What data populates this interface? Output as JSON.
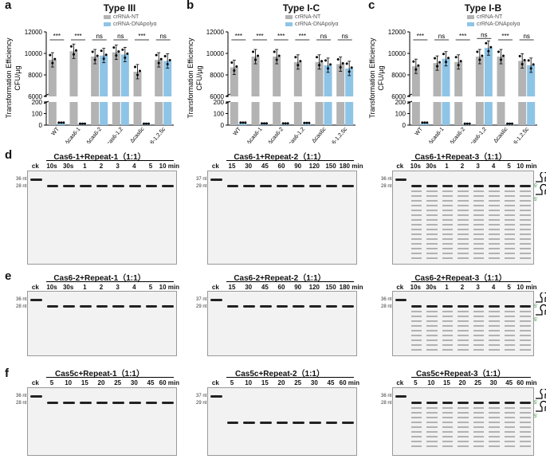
{
  "panels_top": [
    {
      "label": "a",
      "title": "Type III",
      "legend": [
        "crRNA-NT",
        "crRNA-DNApolyα"
      ],
      "ylabel_line1": "Transformation Efficiency",
      "ylabel_line2": "CFU/µg",
      "yticks_upper": [
        "6000",
        "8000",
        "10000",
        "12000"
      ],
      "yticks_lower": [
        "0",
        "100",
        "200"
      ],
      "categories": [
        "WT",
        "Δcas6-1",
        "Δcas6-2",
        "Δcas6-1,2",
        "Δcas6c",
        "Δcas6-1,2,5c"
      ],
      "nt": [
        9400,
        10200,
        9700,
        10100,
        8300,
        9400
      ],
      "dna": [
        15,
        5,
        9800,
        9900,
        5,
        9300
      ],
      "sig": [
        "***",
        "***",
        "ns",
        "ns",
        "***",
        "ns"
      ]
    },
    {
      "label": "b",
      "title": "Type I-C",
      "legend": [
        "crRNA-NT",
        "crRNA-DNApolyα"
      ],
      "ylabel_line1": "Transformation Efficiency",
      "ylabel_line2": "CFU/µg",
      "yticks_upper": [
        "6000",
        "8000",
        "10000",
        "12000"
      ],
      "yticks_lower": [
        "0",
        "100",
        "200"
      ],
      "categories": [
        "WT",
        "Δcas6-1",
        "Δcas6-2",
        "Δcas6-1,2",
        "Δcas6c",
        "Δcas6-1,2,5c"
      ],
      "nt": [
        8700,
        9700,
        9700,
        9200,
        9200,
        9000
      ],
      "dna": [
        15,
        8,
        8,
        12,
        8900,
        8600
      ],
      "sig": [
        "***",
        "***",
        "***",
        "***",
        "ns",
        "ns"
      ]
    },
    {
      "label": "c",
      "title": "Type I-B",
      "legend": [
        "crRNA-NT",
        "crRNA-DNApolyα"
      ],
      "ylabel_line1": "Transformation Efficiency",
      "ylabel_line2": "CFU/µg",
      "yticks_upper": [
        "6000",
        "8000",
        "10000",
        "12000"
      ],
      "yticks_lower": [
        "0",
        "100",
        "200"
      ],
      "categories": [
        "WT",
        "Δcas6-1",
        "Δcas6-2",
        "Δcas6-1,2",
        "Δcas6c",
        "Δcas6-1,2,5c"
      ],
      "nt": [
        8800,
        9100,
        9200,
        9700,
        9700,
        9300
      ],
      "dna": [
        15,
        9500,
        5,
        10500,
        5,
        8900
      ],
      "sig": [
        "***",
        "ns",
        "***",
        "ns",
        "***",
        "ns"
      ]
    }
  ],
  "chart_data": [
    {
      "type": "bar",
      "title": "Type III",
      "categories": [
        "WT",
        "Δcas6-1",
        "Δcas6-2",
        "Δcas6-1,2",
        "Δcas6c",
        "Δcas6-1,2,5c"
      ],
      "series": [
        {
          "name": "crRNA-NT",
          "values": [
            9400,
            10200,
            9700,
            10100,
            8300,
            9400
          ]
        },
        {
          "name": "crRNA-DNApolyα",
          "values": [
            15,
            5,
            9800,
            9900,
            5,
            9300
          ]
        }
      ],
      "ylabel": "Transformation Efficiency CFU/µg",
      "ylim": [
        0,
        12000
      ]
    },
    {
      "type": "bar",
      "title": "Type I-C",
      "categories": [
        "WT",
        "Δcas6-1",
        "Δcas6-2",
        "Δcas6-1,2",
        "Δcas6c",
        "Δcas6-1,2,5c"
      ],
      "series": [
        {
          "name": "crRNA-NT",
          "values": [
            8700,
            9700,
            9700,
            9200,
            9200,
            9000
          ]
        },
        {
          "name": "crRNA-DNApolyα",
          "values": [
            15,
            8,
            8,
            12,
            8900,
            8600
          ]
        }
      ],
      "ylabel": "Transformation Efficiency CFU/µg",
      "ylim": [
        0,
        12000
      ]
    },
    {
      "type": "bar",
      "title": "Type I-B",
      "categories": [
        "WT",
        "Δcas6-1",
        "Δcas6-2",
        "Δcas6-1,2",
        "Δcas6c",
        "Δcas6-1,2,5c"
      ],
      "series": [
        {
          "name": "crRNA-NT",
          "values": [
            8800,
            9100,
            9200,
            9700,
            9700,
            9300
          ]
        },
        {
          "name": "crRNA-DNApolyα",
          "values": [
            15,
            9500,
            5,
            10500,
            5,
            8900
          ]
        }
      ],
      "ylabel": "Transformation Efficiency CFU/µg",
      "ylim": [
        0,
        12000
      ]
    }
  ],
  "row_labels": [
    "d",
    "e",
    "f"
  ],
  "gels": [
    {
      "title": "Cas6-1+Repeat-1（1:1）",
      "lanes": [
        "ck",
        "10s",
        "30s",
        "1",
        "2",
        "3",
        "4",
        "5",
        "10 min"
      ],
      "nt": [
        "36 nt",
        "28 nt"
      ]
    },
    {
      "title": "Cas6-1+Repeat-2（1:1）",
      "lanes": [
        "ck",
        "15",
        "30",
        "45",
        "60",
        "90",
        "120",
        "150",
        "180 min"
      ],
      "nt": [
        "37 nt",
        "29 nt"
      ]
    },
    {
      "title": "Cas6-1+Repeat-3（1:1）",
      "lanes": [
        "ck",
        "10s",
        "30s",
        "1",
        "2",
        "3",
        "4",
        "5",
        "10 min"
      ],
      "nt": [
        "36 nt",
        "28 nt"
      ]
    },
    {
      "title": "Cas6-2+Repeat-1（1:1）",
      "lanes": [
        "ck",
        "10s",
        "30s",
        "1",
        "2",
        "3",
        "4",
        "5",
        "10 min"
      ],
      "nt": [
        "36 nt",
        "28 nt"
      ]
    },
    {
      "title": "Cas6-2+Repeat-2（1:1）",
      "lanes": [
        "ck",
        "15",
        "30",
        "45",
        "60",
        "90",
        "120",
        "150",
        "180 min"
      ],
      "nt": [
        "37 nt",
        "29 nt"
      ]
    },
    {
      "title": "Cas6-2+Repeat-3（1:1）",
      "lanes": [
        "ck",
        "10s",
        "30s",
        "1",
        "2",
        "3",
        "4",
        "5",
        "10 min"
      ],
      "nt": [
        "36 nt",
        "28 nt"
      ]
    },
    {
      "title": "Cas5c+Repeat-1（1:1）",
      "lanes": [
        "ck",
        "5",
        "10",
        "15",
        "20",
        "25",
        "30",
        "45",
        "60 min"
      ],
      "nt": [
        "36 nt",
        "28 nt"
      ]
    },
    {
      "title": "Cas5c+Repeat-2（1:1）",
      "lanes": [
        "ck",
        "5",
        "10",
        "15",
        "20",
        "25",
        "30",
        "45",
        "60 min"
      ],
      "nt": [
        "37 nt",
        "29 nt"
      ]
    },
    {
      "title": "Cas5c+Repeat-3（1:1）",
      "lanes": [
        "ck",
        "5",
        "10",
        "15",
        "20",
        "25",
        "30",
        "45",
        "60 min"
      ],
      "nt": [
        "36 nt",
        "28 nt"
      ]
    }
  ],
  "five_prime": "5'",
  "colors": {
    "nt": "#b3b3b3",
    "dna": "#8ec4e6",
    "dot": "#000000"
  }
}
